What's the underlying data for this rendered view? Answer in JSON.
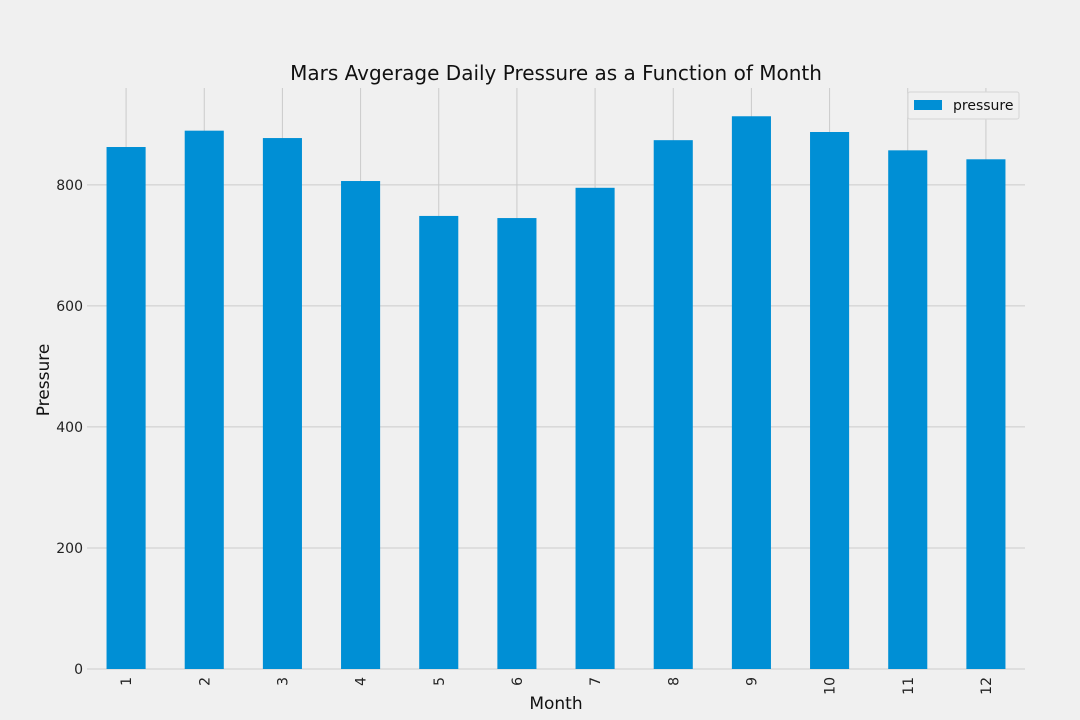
{
  "chart_data": {
    "type": "bar",
    "title": "Mars Avgerage Daily Pressure as a Function of Month",
    "xlabel": "Month",
    "ylabel": "Pressure",
    "categories": [
      "1",
      "2",
      "3",
      "4",
      "5",
      "6",
      "7",
      "8",
      "9",
      "10",
      "11",
      "12"
    ],
    "series": [
      {
        "name": "pressure",
        "values": [
          862.5,
          889.5,
          877.3,
          806.3,
          748.6,
          745.1,
          795.1,
          873.8,
          913.3,
          887.3,
          857.0,
          842.2
        ]
      }
    ],
    "ylim": [
      0,
      960
    ],
    "yticks": [
      0,
      200,
      400,
      600,
      800
    ],
    "grid": true,
    "legend": "top-right",
    "colors": {
      "bar": "#008fd5",
      "background": "#f0f0f0",
      "grid": "#cbcbcb"
    }
  }
}
